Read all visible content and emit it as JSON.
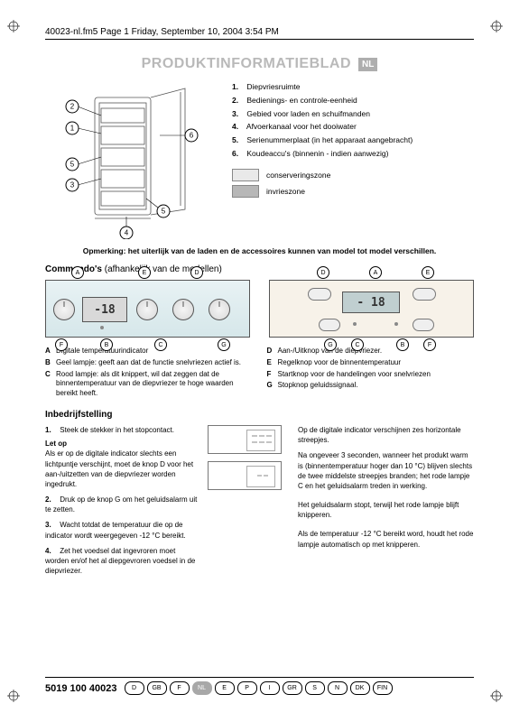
{
  "header": "40023-nl.fm5  Page 1  Friday, September 10, 2004  3:54 PM",
  "title": "PRODUKTINFORMATIEBLAD",
  "title_color": "#b9b9b9",
  "lang_badge": "NL",
  "parts": [
    "Diepvriesruimte",
    "Bedienings- en controle-eenheid",
    "Gebied voor laden en schuifmanden",
    "Afvoerkanaal voor het dooiwater",
    "Serienummerplaat (in het apparaat aangebracht)",
    "Koudeaccu's (binnenin - indien aanwezig)"
  ],
  "zones": [
    {
      "label": "conserveringszone",
      "color": "#e9e9e9"
    },
    {
      "label": "invrieszone",
      "color": "#b7b7b7"
    }
  ],
  "note": "Opmerking: het uiterlijk van de laden en de accessoires kunnen van model tot model verschillen.",
  "commando_head": "Commando's",
  "commando_sub": "(afhankelijk van de modellen)",
  "panelA_display": "-18",
  "panelB_display": "- 18",
  "panelA_callouts": [
    "A",
    "B",
    "E",
    "D",
    "F",
    "C",
    "G"
  ],
  "panelB_callouts": [
    "D",
    "A",
    "E",
    "G",
    "C",
    "B",
    "F"
  ],
  "defs_left": [
    {
      "k": "A",
      "t": "Digitale temperatuurindicator"
    },
    {
      "k": "B",
      "t": "Geel lampje: geeft aan dat de functie snelvriezen actief is."
    },
    {
      "k": "C",
      "t": "Rood lampje: als dit knippert, wil dat zeggen dat de binnentemperatuur van de diepvriezer te hoge waarden bereikt heeft."
    }
  ],
  "defs_right": [
    {
      "k": "D",
      "t": "Aan-/Uitknop van de diepvriezer."
    },
    {
      "k": "E",
      "t": "Regelknop voor de binnentemperatuur"
    },
    {
      "k": "F",
      "t": "Startknop voor de handelingen voor snelvriezen"
    },
    {
      "k": "G",
      "t": "Stopknop geluidssignaal."
    }
  ],
  "inbedrijf_head": "Inbedrijfstelling",
  "steps": [
    "Steek de stekker in het stopcontact.",
    "Druk op de knop G om het geluidsalarm uit te zetten.",
    "Wacht totdat de temperatuur die op de indicator wordt weergegeven -12 °C bereikt.",
    "Zet het voedsel dat ingevroren moet worden en/of het al diepgevroren voedsel in de diepvriezer."
  ],
  "letop_head": "Let op",
  "letop_body": "Als er op de digitale indicator slechts een lichtpuntje verschijnt, moet de knop D voor het aan-/uitzetten van de diepvriezer worden ingedrukt.",
  "right_para1": "Op de digitale indicator verschijnen zes horizontale streepjes.",
  "right_para2": "Na ongeveer 3 seconden, wanneer het produkt warm is (binnentemperatuur hoger dan 10 °C) blijven slechts de twee middelste streepjes branden; het rode lampje C en het geluidsalarm treden in werking.",
  "right_para3": "Het geluidsalarm stopt, terwijl het rode lampje blijft knipperen.",
  "right_para4": "Als de temperatuur -12 °C bereikt word, houdt het rode lampje automatisch op met knipperen.",
  "footer_pn": "5019 100 40023",
  "footer_langs": [
    "D",
    "GB",
    "F",
    "NL",
    "E",
    "P",
    "I",
    "GR",
    "S",
    "N",
    "DK",
    "FIN"
  ],
  "footer_active": "NL"
}
